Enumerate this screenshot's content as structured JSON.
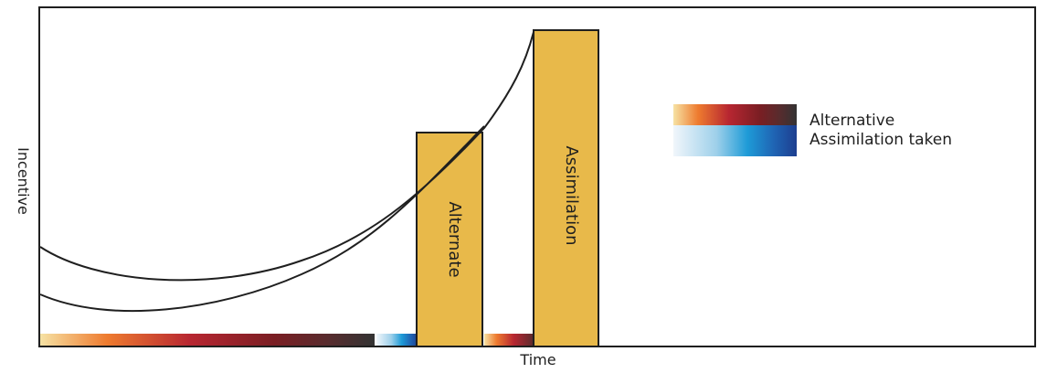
{
  "chart": {
    "y_label": "Incentive",
    "x_label": "Time",
    "bars": [
      {
        "label": "Alternate"
      },
      {
        "label": "Assimilation"
      }
    ],
    "legend": [
      {
        "label": "Alternative",
        "gradient": "alternative"
      },
      {
        "label": "Assimilation taken",
        "gradient": "assimilation"
      }
    ]
  },
  "colors": {
    "bar_fill": "#E8B94A",
    "stroke": "#1f1f1f",
    "alternative_gradient": [
      "#F6E2A4",
      "#EE7B2F",
      "#B72631",
      "#7A1E23",
      "#5A2B2D",
      "#333333"
    ],
    "assimilation_gradient": [
      "#F1F6FB",
      "#9ED0EA",
      "#1E9BD7",
      "#1F63B3",
      "#1D3E8F"
    ]
  }
}
